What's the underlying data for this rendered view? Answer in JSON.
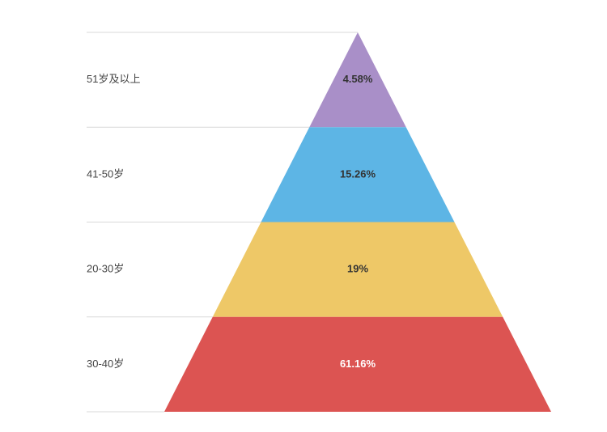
{
  "chart_data": {
    "type": "pyramid",
    "title": "",
    "categories": [
      "51岁及以上",
      "41-50岁",
      "20-30岁",
      "30-40岁"
    ],
    "values": [
      4.58,
      15.26,
      19,
      61.16
    ],
    "value_labels": [
      "4.58%",
      "15.26%",
      "19%",
      "61.16%"
    ],
    "unit": "%",
    "colors": [
      "#a98fc8",
      "#5db5e5",
      "#eec867",
      "#dc5452"
    ],
    "value_label_colors": [
      "#333333",
      "#333333",
      "#333333",
      "#ffffff"
    ],
    "separator_color": "#d9d9d9",
    "label_color": "#444444"
  }
}
